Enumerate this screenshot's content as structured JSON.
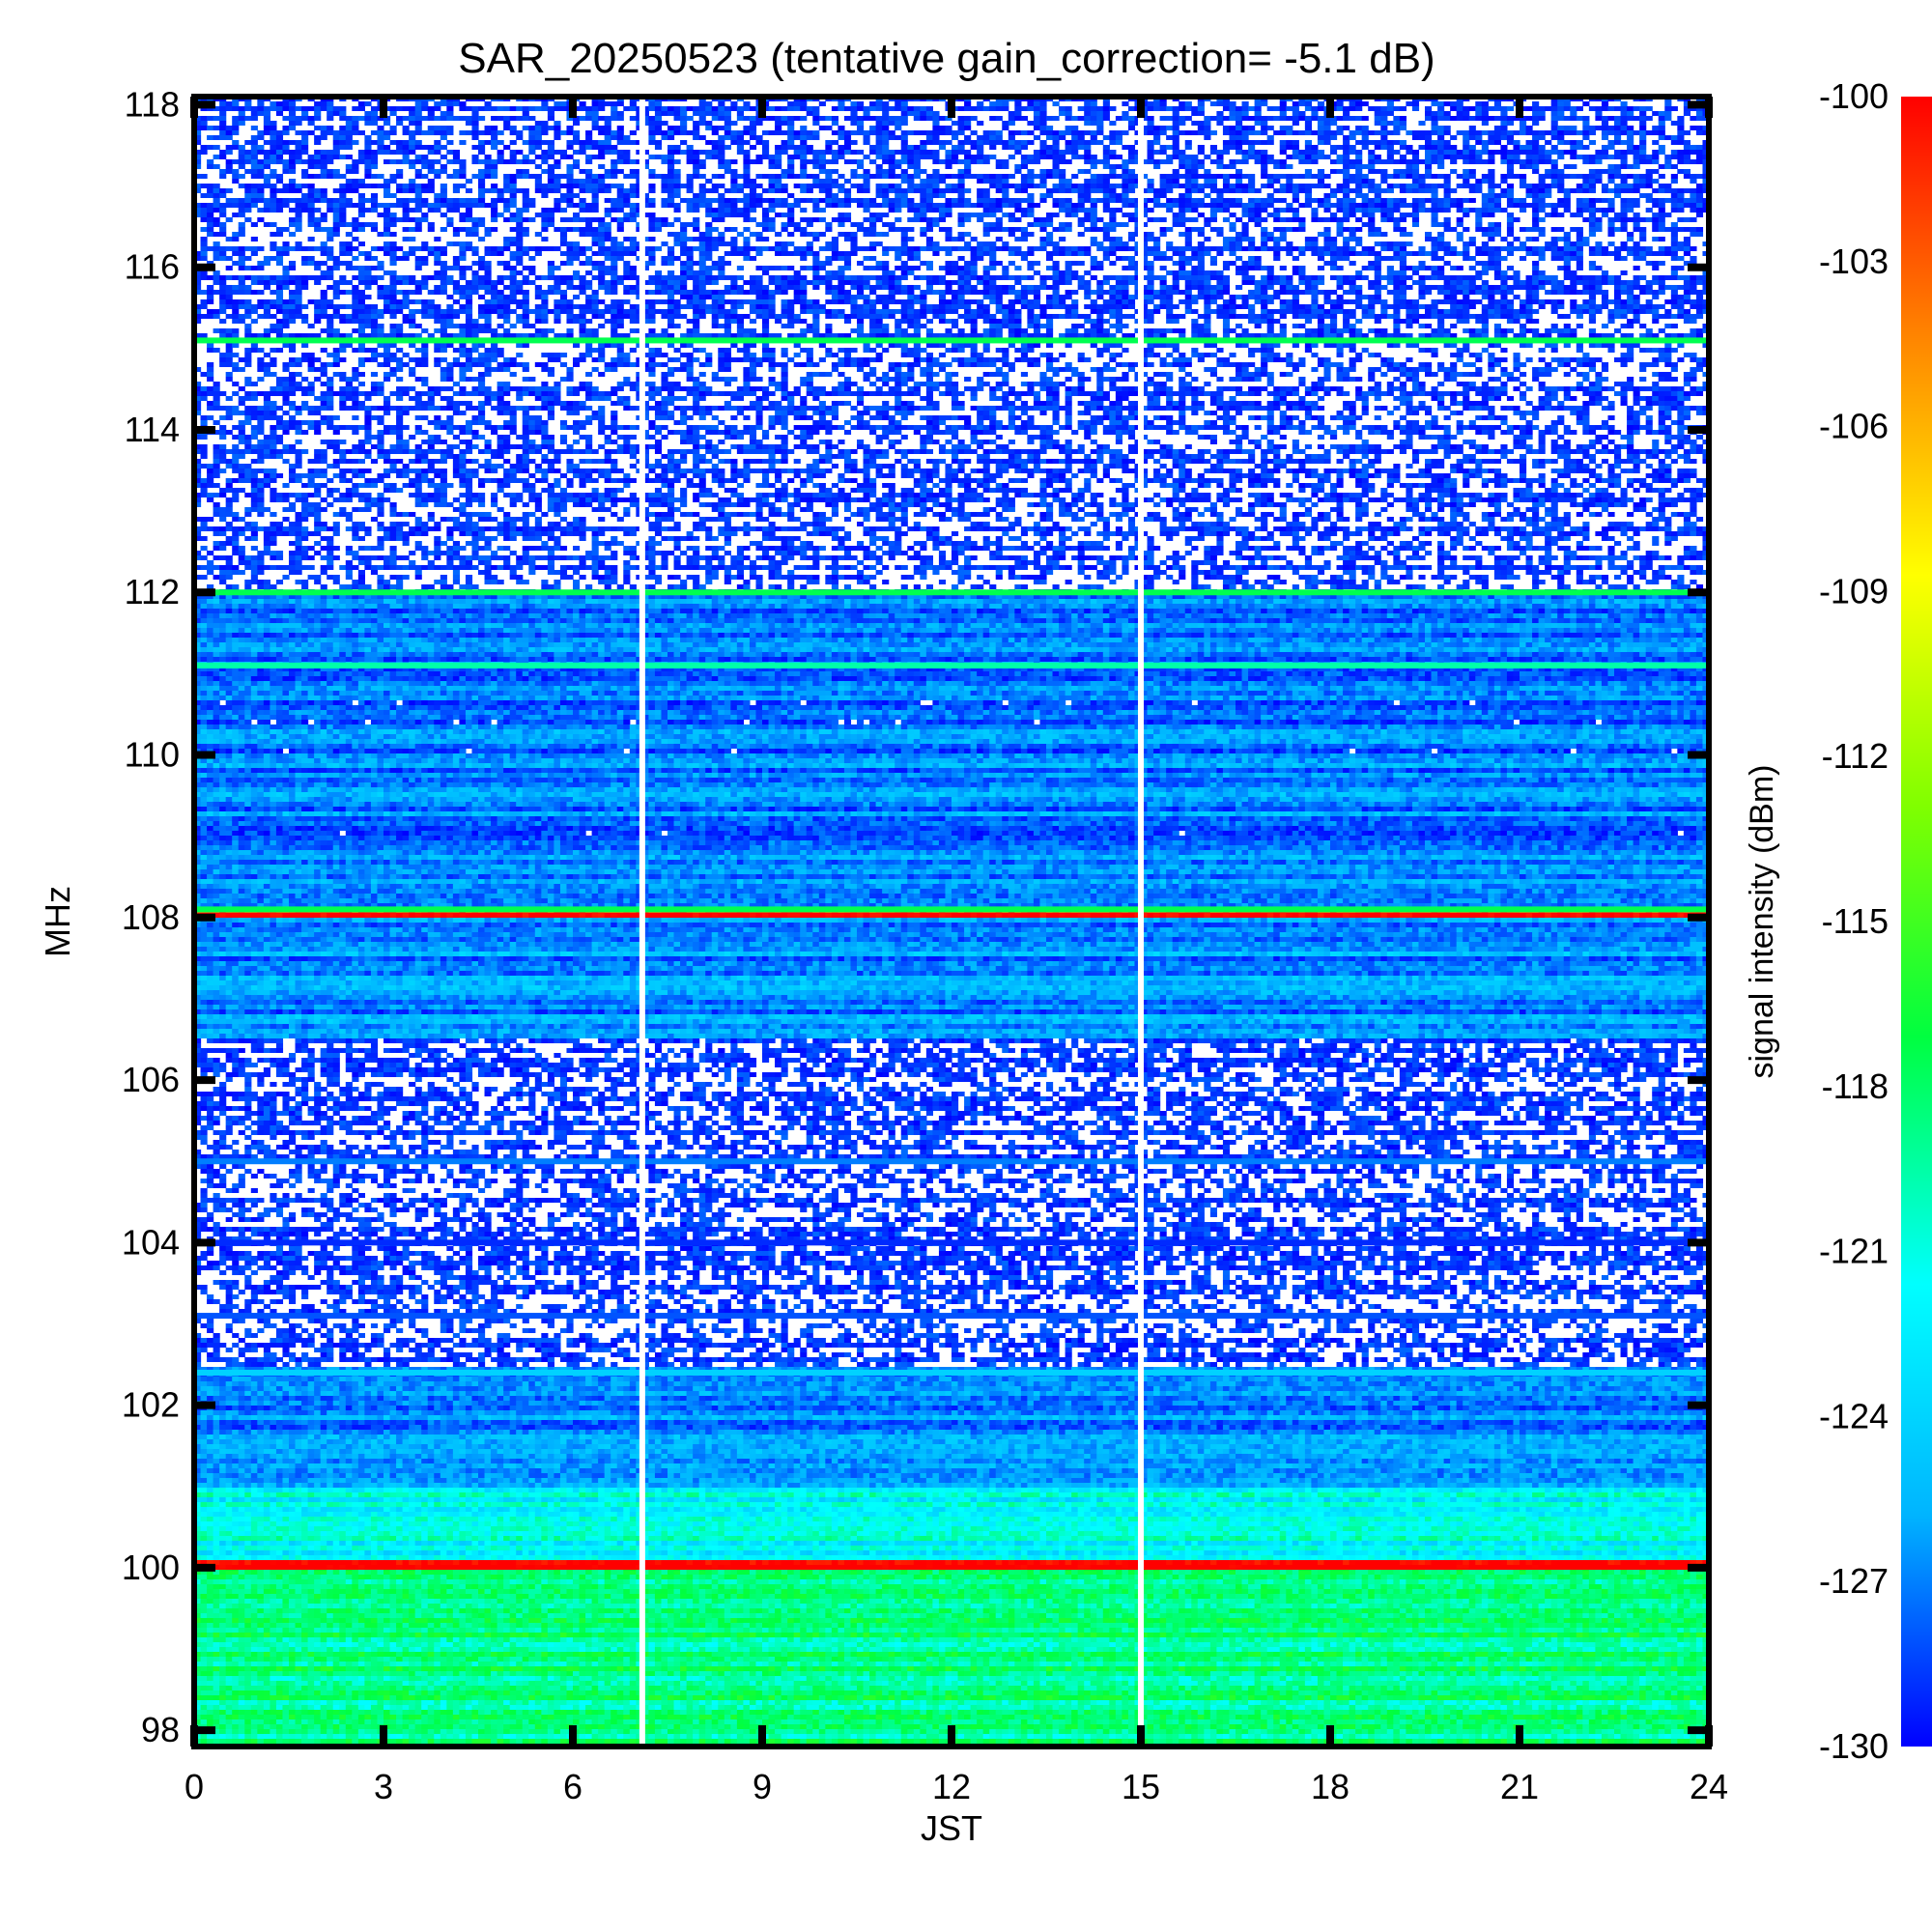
{
  "chart_data": {
    "type": "heatmap",
    "title": "SAR_20250523 (tentative gain_correction= -5.1 dB)",
    "xlabel": "JST",
    "ylabel": "MHz",
    "xlim": [
      0,
      24
    ],
    "ylim": [
      97.8,
      118.1
    ],
    "x_ticks": [
      0,
      3,
      6,
      9,
      12,
      15,
      18,
      21,
      24
    ],
    "y_ticks": [
      98,
      100,
      102,
      104,
      106,
      108,
      110,
      112,
      114,
      116,
      118
    ],
    "colorbar": {
      "label": "signal intensity (dBm)",
      "min": -130,
      "max": -100,
      "ticks": [
        -100,
        -103,
        -106,
        -109,
        -112,
        -115,
        -118,
        -121,
        -124,
        -127,
        -130
      ],
      "colors": [
        "#0000ff",
        "#00b4ff",
        "#00ffff",
        "#00ff40",
        "#80ff00",
        "#ffff00",
        "#ff8000",
        "#ff0000"
      ]
    },
    "data_gaps_jst": [
      7.1,
      15.0
    ],
    "bands": [
      {
        "from": 97.8,
        "to": 100.0,
        "level_dbm": -118.5
      },
      {
        "from": 100.0,
        "to": 100.1,
        "level_dbm": -100.5
      },
      {
        "from": 100.1,
        "to": 101.0,
        "level_dbm": -121.5
      },
      {
        "from": 101.0,
        "to": 102.5,
        "level_dbm": -126.5
      },
      {
        "from": 102.5,
        "to": 106.5,
        "level_dbm": -131.0
      },
      {
        "from": 106.5,
        "to": 108.0,
        "level_dbm": -126.5
      },
      {
        "from": 108.0,
        "to": 108.1,
        "level_dbm": -101.0
      },
      {
        "from": 108.1,
        "to": 112.0,
        "level_dbm": -127.0
      },
      {
        "from": 112.0,
        "to": 118.1,
        "level_dbm": -131.0
      }
    ],
    "persistent_lines_mhz": [
      {
        "mhz": 112.0,
        "level_dbm": -117.5
      },
      {
        "mhz": 115.1,
        "level_dbm": -117.5
      },
      {
        "mhz": 111.1,
        "level_dbm": -119.5
      },
      {
        "mhz": 108.1,
        "level_dbm": -117.5
      },
      {
        "mhz": 105.0,
        "level_dbm": -127.0
      },
      {
        "mhz": 103.1,
        "level_dbm": -128.0
      },
      {
        "mhz": 104.0,
        "level_dbm": -129.0
      },
      {
        "mhz": 102.4,
        "level_dbm": -124.0
      }
    ]
  }
}
